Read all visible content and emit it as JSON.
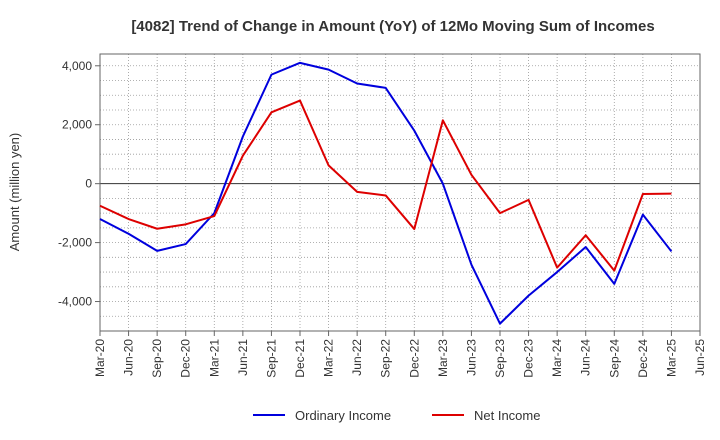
{
  "chart_data": {
    "type": "line",
    "title": "[4082]  Trend of Change in Amount (YoY) of 12Mo Moving Sum of Incomes",
    "ylabel": "Amount (million yen)",
    "xlabel": "",
    "ylim": [
      -5000,
      4400
    ],
    "yticks": [
      4000,
      2000,
      0,
      -2000,
      -4000
    ],
    "ytick_labels": [
      "4,000",
      "2,000",
      "0",
      "-2,000",
      "-4,000"
    ],
    "categories": [
      "Mar-20",
      "Jun-20",
      "Sep-20",
      "Dec-20",
      "Mar-21",
      "Jun-21",
      "Sep-21",
      "Dec-21",
      "Mar-22",
      "Jun-22",
      "Sep-22",
      "Dec-22",
      "Mar-23",
      "Jun-23",
      "Sep-23",
      "Dec-23",
      "Mar-24",
      "Jun-24",
      "Sep-24",
      "Dec-24",
      "Mar-25",
      "Jun-25"
    ],
    "grid": true,
    "legend_position": "bottom",
    "series": [
      {
        "name": "Ordinary Income",
        "color": "#0000dd",
        "values": [
          -1200,
          -1700,
          -2280,
          -2050,
          -1000,
          1600,
          3700,
          4100,
          3870,
          3400,
          3250,
          1800,
          0,
          -2750,
          -4750,
          -3800,
          -3000,
          -2150,
          -3400,
          -1050,
          -2300,
          null
        ]
      },
      {
        "name": "Net Income",
        "color": "#dd0000",
        "values": [
          -750,
          -1200,
          -1530,
          -1380,
          -1100,
          950,
          2420,
          2820,
          620,
          -280,
          -400,
          -1540,
          2150,
          300,
          -1000,
          -550,
          -2850,
          -1750,
          -2950,
          -350,
          -340,
          null
        ]
      }
    ]
  }
}
